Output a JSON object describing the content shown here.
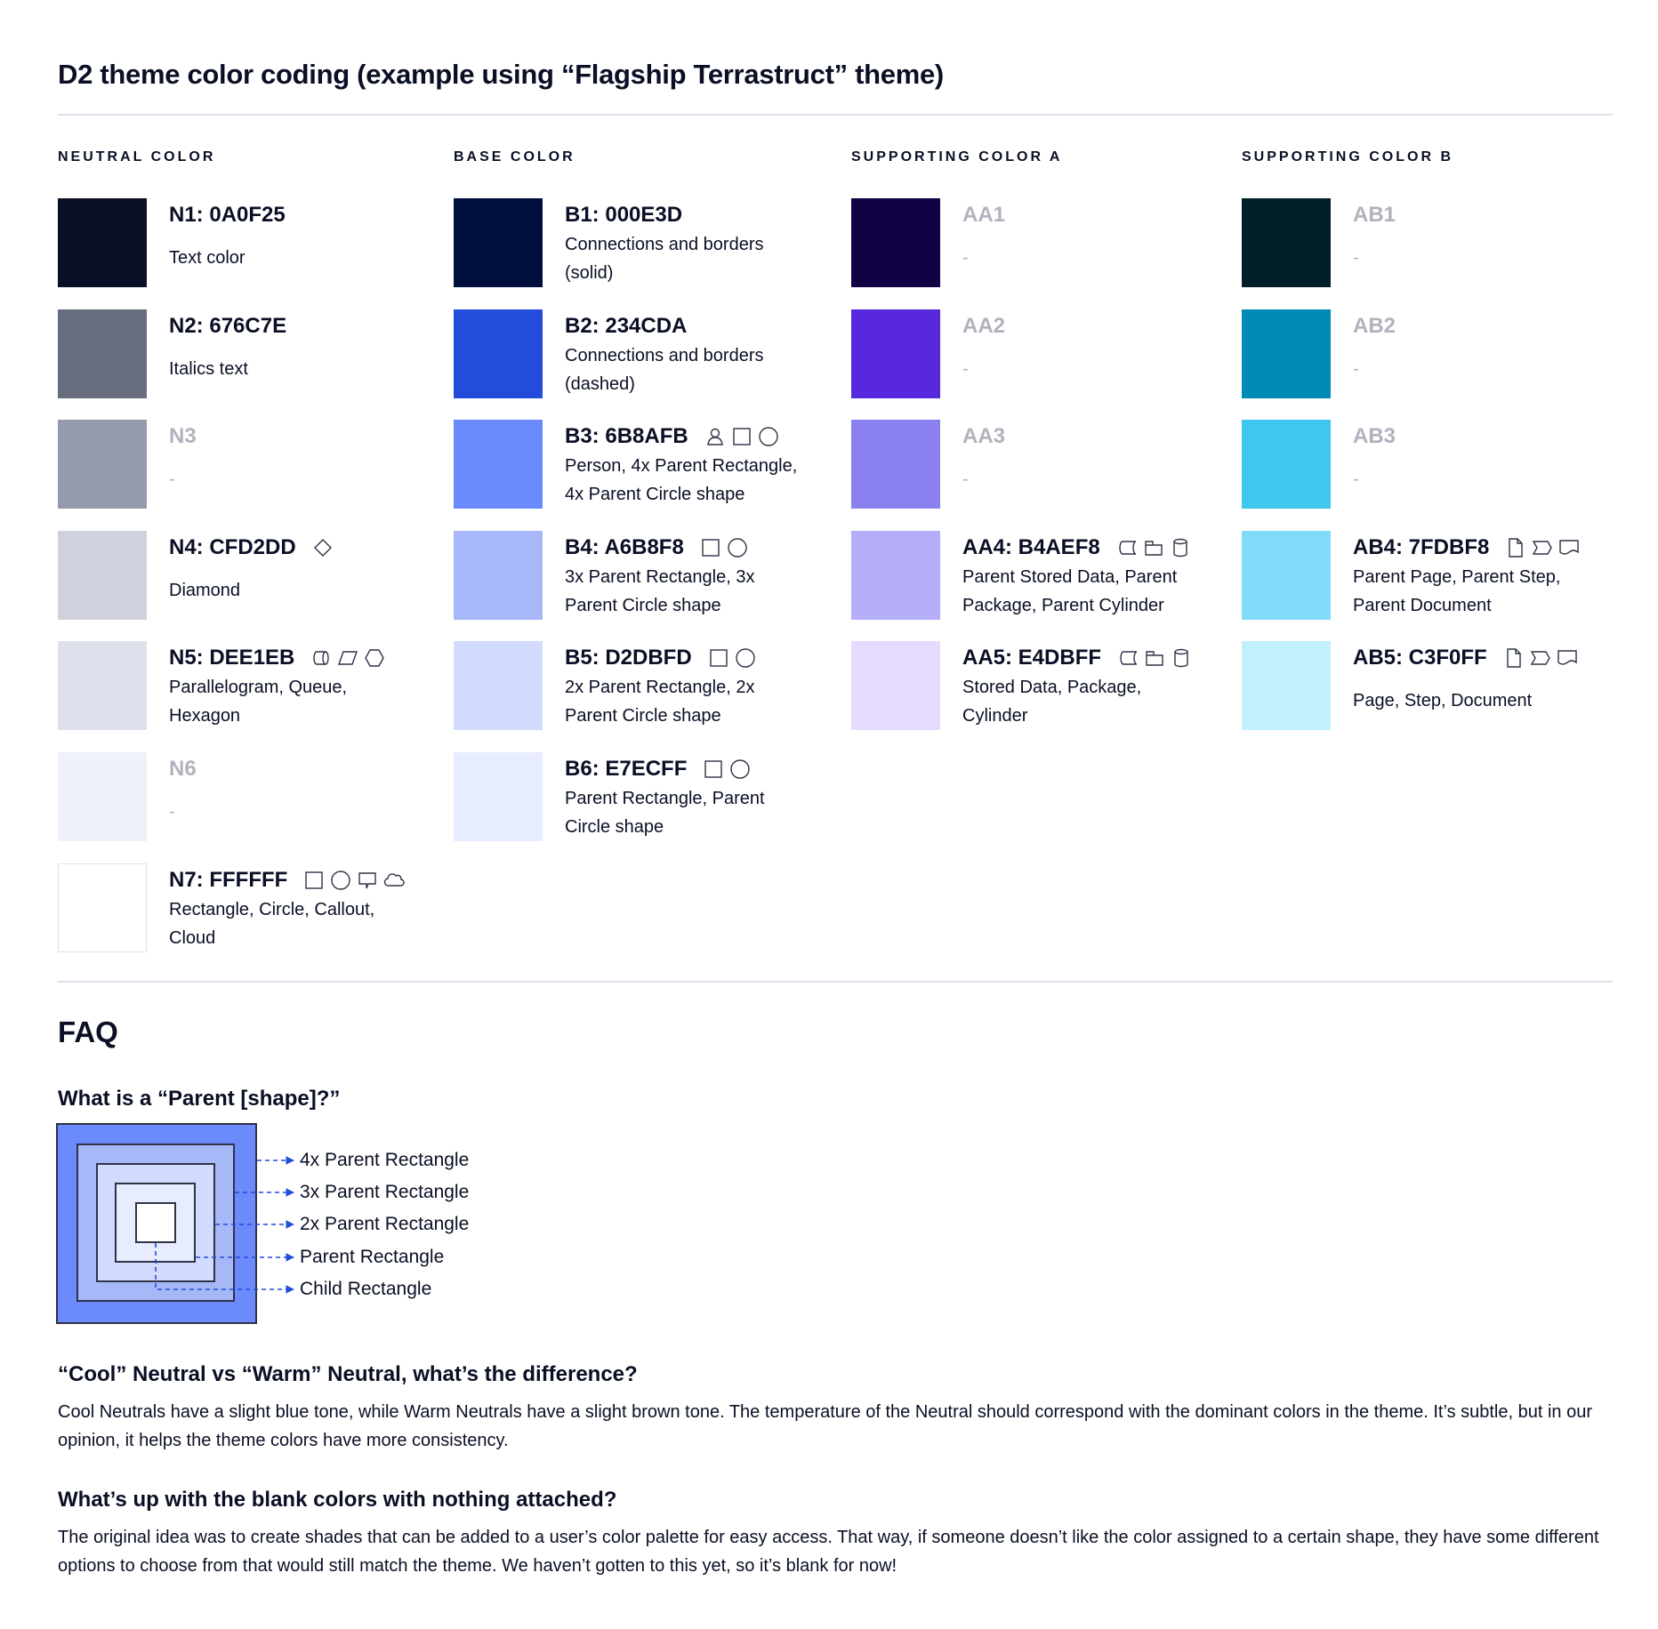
{
  "title": "D2 theme color coding (example using “Flagship Terrastruct” theme)",
  "columns": [
    {
      "heading": "NEUTRAL COLOR",
      "items": [
        {
          "label": "N1: 0A0F25",
          "color": "#0A0F25",
          "desc": "Text color",
          "icons": []
        },
        {
          "label": "N2: 676C7E",
          "color": "#676C7E",
          "desc": "Italics text",
          "icons": []
        },
        {
          "label": "N3",
          "color": "#9499AB",
          "desc": "-",
          "muted": true,
          "icons": []
        },
        {
          "label": "N4: CFD2DD",
          "color": "#CFD2DD",
          "desc": "Diamond",
          "icons": [
            "diamond"
          ]
        },
        {
          "label": "N5: DEE1EB",
          "color": "#DEE1EB",
          "desc": "Parallelogram, Queue,\nHexagon",
          "icons": [
            "queue",
            "parallelogram",
            "hexagon"
          ]
        },
        {
          "label": "N6",
          "color": "#EEF1F8",
          "desc": "-",
          "muted": true,
          "icons": []
        },
        {
          "label": "N7: FFFFFF",
          "color": "#FFFFFF",
          "desc": "Rectangle, Circle, Callout,\nCloud",
          "icons": [
            "rectangle",
            "circle",
            "callout",
            "cloud"
          ]
        }
      ]
    },
    {
      "heading": "BASE COLOR",
      "items": [
        {
          "label": "B1: 000E3D",
          "color": "#000E3D",
          "desc": "Connections and borders\n(solid)",
          "icons": []
        },
        {
          "label": "B2: 234CDA",
          "color": "#234CDA",
          "desc": "Connections and borders\n(dashed)",
          "icons": []
        },
        {
          "label": "B3: 6B8AFB",
          "color": "#6B8AFB",
          "desc": "Person, 4x Parent Rectangle,\n4x Parent Circle shape",
          "icons": [
            "person",
            "rectangle",
            "circle"
          ]
        },
        {
          "label": "B4: A6B8F8",
          "color": "#A6B8F8",
          "desc": "3x Parent Rectangle, 3x\nParent Circle shape",
          "icons": [
            "rectangle",
            "circle"
          ]
        },
        {
          "label": "B5: D2DBFD",
          "color": "#D2DBFD",
          "desc": "2x Parent Rectangle, 2x\nParent Circle shape",
          "icons": [
            "rectangle",
            "circle"
          ]
        },
        {
          "label": "B6: E7ECFF",
          "color": "#E7ECFF",
          "desc": "Parent Rectangle, Parent\nCircle shape",
          "icons": [
            "rectangle",
            "circle"
          ]
        }
      ]
    },
    {
      "heading": "SUPPORTING COLOR A",
      "items": [
        {
          "label": "AA1",
          "color": "#120045",
          "desc": "-",
          "muted": true,
          "icons": []
        },
        {
          "label": "AA2",
          "color": "#5829DC",
          "desc": "-",
          "muted": true,
          "icons": []
        },
        {
          "label": "AA3",
          "color": "#8A80F0",
          "desc": "-",
          "muted": true,
          "icons": []
        },
        {
          "label": "AA4: B4AEF8",
          "color": "#B4AEF8",
          "desc": "Parent Stored Data, Parent\nPackage,  Parent Cylinder",
          "icons": [
            "stored-data",
            "package",
            "cylinder"
          ]
        },
        {
          "label": "AA5: E4DBFF",
          "color": "#E4DBFF",
          "desc": "Stored Data, Package,\nCylinder",
          "icons": [
            "stored-data",
            "package",
            "cylinder"
          ]
        }
      ]
    },
    {
      "heading": "SUPPORTING COLOR B",
      "items": [
        {
          "label": "AB1",
          "color": "#011F28",
          "desc": "-",
          "muted": true,
          "icons": []
        },
        {
          "label": "AB2",
          "color": "#008AB6",
          "desc": "-",
          "muted": true,
          "icons": []
        },
        {
          "label": "AB3",
          "color": "#3FC7F0",
          "desc": "-",
          "muted": true,
          "icons": []
        },
        {
          "label": "AB4: 7FDBF8",
          "color": "#7FDBF8",
          "desc": "Parent Page, Parent Step,\nParent Document",
          "icons": [
            "page",
            "step",
            "document"
          ]
        },
        {
          "label": "AB5: C3F0FF",
          "color": "#C3F0FF",
          "desc": "Page, Step, Document",
          "icons": [
            "page",
            "step",
            "document"
          ]
        }
      ]
    }
  ],
  "faq": {
    "title": "FAQ",
    "q1": "What is a “Parent [shape]?”",
    "diagram_labels": [
      "4x Parent Rectangle",
      "3x Parent Rectangle",
      "2x Parent Rectangle",
      "Parent Rectangle",
      "Child Rectangle"
    ],
    "diagram_colors": [
      "#6B8AFB",
      "#A6B8F8",
      "#D2DBFD",
      "#E7ECFF",
      "#FFFFFF"
    ],
    "q2": "“Cool” Neutral vs “Warm” Neutral, what’s the difference?",
    "a2": "Cool Neutrals have a slight blue tone, while Warm Neutrals have a slight brown tone. The temperature of the Neutral should correspond with the dominant colors in the theme. It’s subtle, but in our opinion, it helps the theme colors have more consistency.",
    "q3": "What’s up with the blank colors with nothing attached?",
    "a3": "The original idea was to create shades that can be added to a user’s color palette for easy access. That way, if someone doesn’t like the color assigned to a certain shape, they have some different options to choose from that would still match the theme. We haven’t gotten to this yet, so it’s blank for now!"
  },
  "accent": "#234CDA"
}
